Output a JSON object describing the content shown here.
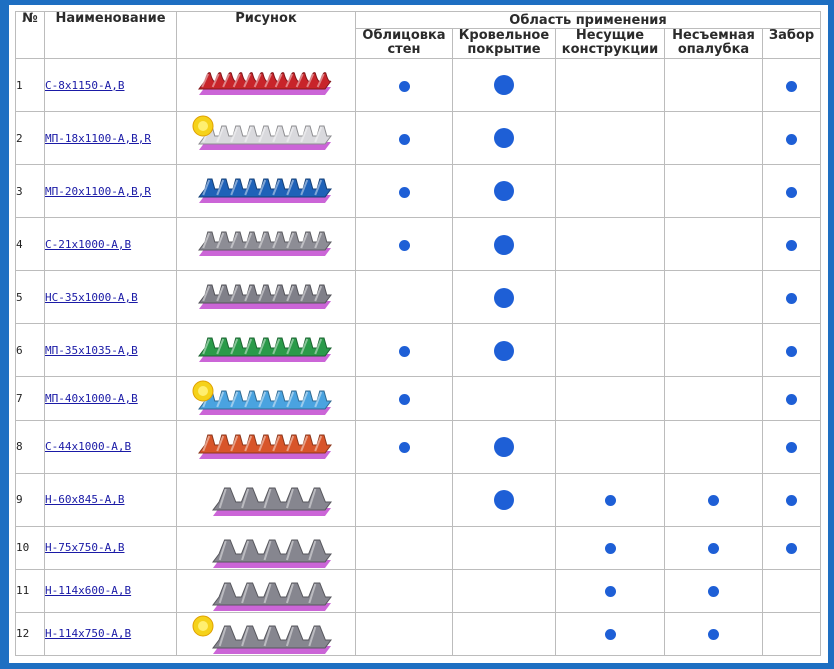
{
  "header": {
    "num": "№",
    "name": "Наименование",
    "picture": "Рисунок",
    "usage": "Область применения",
    "cols": [
      "Облицовка стен",
      "Кровельное покрытие",
      "Несущие конструкции",
      "Несъемная опалубка",
      "Забор"
    ]
  },
  "rows": [
    {
      "num": "1",
      "name": "С-8х1150-А,В",
      "profile": "wave",
      "color": "#c8242a",
      "badge": false,
      "use": [
        1,
        1,
        0,
        0,
        1
      ]
    },
    {
      "num": "2",
      "name": "МП-18х1100-А,В,R",
      "profile": "trapezoid",
      "color": "#d9d9dd",
      "badge": true,
      "use": [
        1,
        1,
        0,
        0,
        1
      ]
    },
    {
      "num": "3",
      "name": "МП-20х1100-А,В,R",
      "profile": "trapezoid",
      "color": "#1f62b8",
      "badge": false,
      "use": [
        1,
        1,
        0,
        0,
        1
      ]
    },
    {
      "num": "4",
      "name": "С-21х1000-А,В",
      "profile": "trapezoid",
      "color": "#8d8d95",
      "badge": false,
      "use": [
        1,
        1,
        0,
        0,
        1
      ]
    },
    {
      "num": "5",
      "name": "НС-35х1000-А,В",
      "profile": "trapezoid",
      "color": "#808089",
      "badge": false,
      "use": [
        0,
        1,
        0,
        0,
        1
      ]
    },
    {
      "num": "6",
      "name": "МП-35х1035-А,В",
      "profile": "trapezoid",
      "color": "#2a9a4a",
      "badge": false,
      "use": [
        1,
        1,
        0,
        0,
        1
      ]
    },
    {
      "num": "7",
      "name": "МП-40х1000-А,В",
      "profile": "trapezoid",
      "color": "#4aa3e0",
      "badge": true,
      "use": [
        1,
        0,
        0,
        0,
        1
      ]
    },
    {
      "num": "8",
      "name": "С-44х1000-А,В",
      "profile": "trapezoid",
      "color": "#d8552a",
      "badge": false,
      "use": [
        1,
        1,
        0,
        0,
        1
      ]
    },
    {
      "num": "9",
      "name": "Н-60х845-А,В",
      "profile": "deep",
      "color": "#86868f",
      "badge": false,
      "use": [
        0,
        1,
        1,
        1,
        1
      ]
    },
    {
      "num": "10",
      "name": "Н-75х750-А,В",
      "profile": "deep",
      "color": "#86868f",
      "badge": false,
      "use": [
        0,
        0,
        1,
        1,
        1
      ]
    },
    {
      "num": "11",
      "name": "Н-114х600-А,В",
      "profile": "deep",
      "color": "#86868f",
      "badge": false,
      "use": [
        0,
        0,
        1,
        1,
        0
      ]
    },
    {
      "num": "12",
      "name": "Н-114х750-А,В",
      "profile": "deep",
      "color": "#86868f",
      "badge": true,
      "use": [
        0,
        0,
        1,
        1,
        0
      ]
    }
  ],
  "colors": {
    "frame": "#1e6fc2",
    "dot": "#1e5fd6",
    "link": "#1a1aa6",
    "grid": "#bcbcbc",
    "underside": "#c24ad0",
    "badge": "#f5d21a"
  }
}
